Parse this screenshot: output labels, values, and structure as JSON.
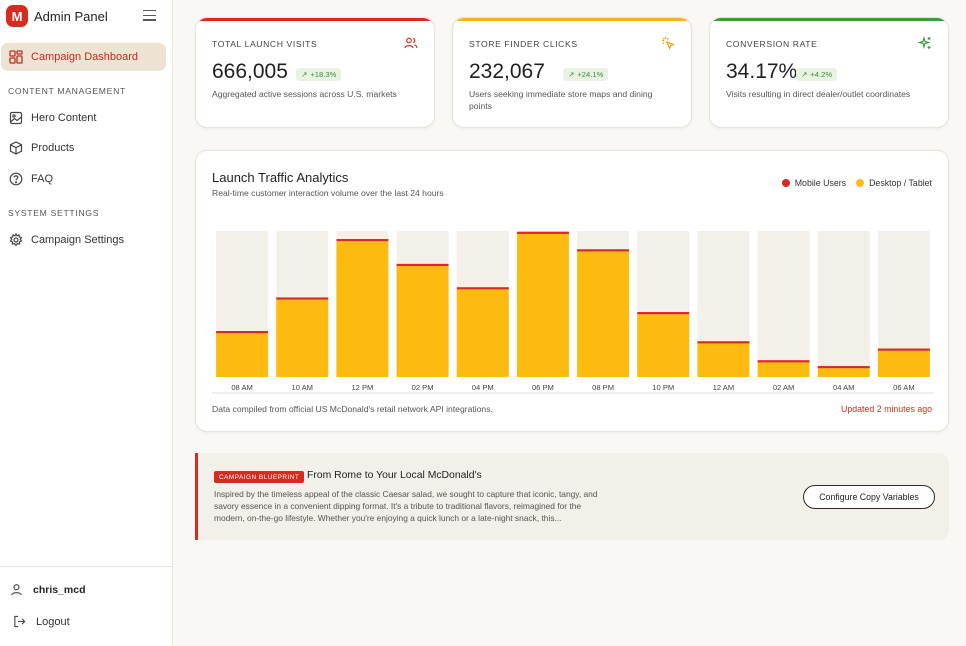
{
  "sidebar": {
    "brand_letter": "M",
    "brand_title": "Admin Panel",
    "active_item": "Campaign Dashboard",
    "sections": [
      {
        "title": "CONTENT MANAGEMENT",
        "items": [
          "Hero Content",
          "Products",
          "FAQ"
        ]
      },
      {
        "title": "SYSTEM SETTINGS",
        "items": [
          "Campaign Settings"
        ]
      }
    ],
    "user": "chris_mcd",
    "logout": "Logout"
  },
  "stats": [
    {
      "label": "TOTAL LAUNCH VISITS",
      "value": "666,005",
      "badge": "+18.3%",
      "description": "Aggregated active sessions across U.S. markets",
      "accent": "#d62b20",
      "icon": "users-icon"
    },
    {
      "label": "STORE FINDER CLICKS",
      "value": "232,067",
      "badge": "+24.1%",
      "description": "Users seeking immediate store maps and dining points",
      "accent": "#f5b518",
      "icon": "click-icon"
    },
    {
      "label": "CONVERSION RATE",
      "value": "34.17%",
      "badge": "+4.2%",
      "description": "Visits resulting in direct dealer/outlet coordinates",
      "accent": "#3f9a3a",
      "icon": "sparkle-icon"
    }
  ],
  "chart": {
    "title": "Launch Traffic Analytics",
    "subtitle": "Real-time customer interaction volume over the last 24 hours",
    "footnote": "Data compiled from official US McDonald's retail network API integrations.",
    "updated": "Updated 2 minutes ago"
  },
  "chart_data": {
    "type": "bar",
    "stacked": true,
    "categories": [
      "08 AM",
      "10 AM",
      "12 PM",
      "02 PM",
      "04 PM",
      "06 PM",
      "08 PM",
      "10 PM",
      "12 AM",
      "02 AM",
      "04 AM",
      "06 AM"
    ],
    "series": [
      {
        "name": "Mobile Users",
        "color": "#d62b20",
        "values": [
          2,
          2,
          2,
          2,
          2,
          2,
          2,
          2,
          2,
          2,
          2,
          2
        ]
      },
      {
        "name": "Desktop / Tablet",
        "color": "#fdbb10",
        "values": [
          30,
          53,
          93,
          76,
          60,
          98,
          86,
          43,
          23,
          10,
          6,
          18
        ]
      }
    ],
    "ylim": [
      0,
      100
    ],
    "legend": "top-right",
    "grid": false
  },
  "blueprint": {
    "tag": "CAMPAIGN BLUEPRINT",
    "title": "From Rome to Your Local McDonald's",
    "body": "Inspired by the timeless appeal of the classic Caesar salad, we sought to capture that iconic, tangy, and savory essence in a convenient dipping format. It's a tribute to traditional flavors, reimagined for the modern, on-the-go lifestyle. Whether you're enjoying a quick lunch or a late-night snack, this...",
    "button": "Configure Copy Variables"
  }
}
